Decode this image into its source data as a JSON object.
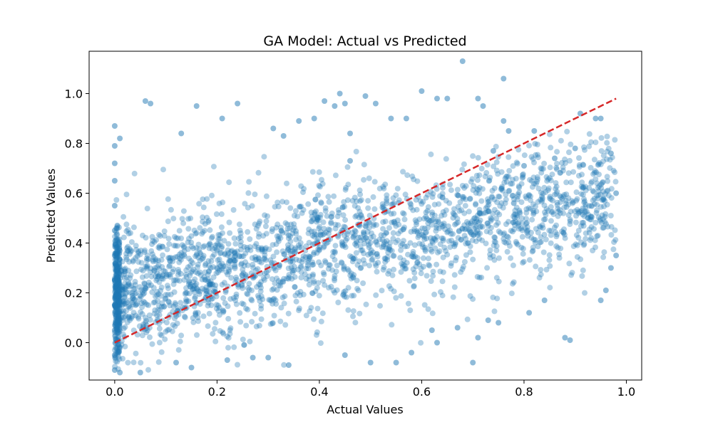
{
  "chart_data": {
    "type": "scatter",
    "title": "GA Model: Actual vs Predicted",
    "xlabel": "Actual Values",
    "ylabel": "Predicted Values",
    "xlim": [
      -0.05,
      1.03
    ],
    "ylim": [
      -0.15,
      1.17
    ],
    "xticks": [
      0.0,
      0.2,
      0.4,
      0.6,
      0.8,
      1.0
    ],
    "xtick_labels": [
      "0.0",
      "0.2",
      "0.4",
      "0.6",
      "0.8",
      "1.0"
    ],
    "yticks": [
      0.0,
      0.2,
      0.4,
      0.6,
      0.8,
      1.0
    ],
    "ytick_labels": [
      "0.0",
      "0.2",
      "0.4",
      "0.6",
      "0.8",
      "1.0"
    ],
    "grid": false,
    "marker_color": "#1f77b4",
    "marker_alpha": 0.5,
    "reference_line": {
      "x": [
        0.0,
        0.98
      ],
      "y": [
        0.0,
        0.98
      ],
      "color": "#d62728",
      "style": "dashed"
    },
    "series": [
      {
        "points": [
          [
            0.0,
            0.87
          ],
          [
            0.0,
            0.79
          ],
          [
            0.01,
            0.82
          ],
          [
            0.0,
            0.72
          ],
          [
            0.0,
            0.65
          ],
          [
            0.0,
            0.55
          ],
          [
            0.0,
            0.45
          ],
          [
            0.0,
            0.35
          ],
          [
            0.0,
            0.25
          ],
          [
            0.0,
            0.15
          ],
          [
            0.0,
            0.05
          ],
          [
            0.0,
            -0.05
          ],
          [
            0.0,
            -0.11
          ],
          [
            0.01,
            -0.12
          ],
          [
            0.06,
            0.97
          ],
          [
            0.07,
            0.96
          ],
          [
            0.16,
            0.95
          ],
          [
            0.24,
            0.96
          ],
          [
            0.21,
            0.9
          ],
          [
            0.13,
            0.84
          ],
          [
            0.05,
            -0.12
          ],
          [
            0.12,
            -0.08
          ],
          [
            0.15,
            -0.1
          ],
          [
            0.31,
            0.86
          ],
          [
            0.33,
            0.83
          ],
          [
            0.36,
            0.89
          ],
          [
            0.39,
            0.9
          ],
          [
            0.41,
            0.97
          ],
          [
            0.43,
            0.95
          ],
          [
            0.44,
            1.0
          ],
          [
            0.45,
            0.96
          ],
          [
            0.46,
            0.84
          ],
          [
            0.49,
            0.99
          ],
          [
            0.51,
            0.96
          ],
          [
            0.46,
            0.73
          ],
          [
            0.54,
            0.9
          ],
          [
            0.57,
            0.9
          ],
          [
            0.6,
            1.01
          ],
          [
            0.63,
            0.98
          ],
          [
            0.65,
            0.98
          ],
          [
            0.68,
            1.13
          ],
          [
            0.71,
            0.98
          ],
          [
            0.72,
            0.95
          ],
          [
            0.76,
            1.06
          ],
          [
            0.76,
            0.89
          ],
          [
            0.77,
            0.85
          ],
          [
            0.82,
            0.85
          ],
          [
            0.91,
            0.92
          ],
          [
            0.94,
            0.9
          ],
          [
            0.62,
            0.05
          ],
          [
            0.63,
            0.0
          ],
          [
            0.67,
            0.06
          ],
          [
            0.7,
            -0.08
          ],
          [
            0.71,
            0.02
          ],
          [
            0.73,
            0.09
          ],
          [
            0.75,
            0.08
          ],
          [
            0.81,
            0.12
          ],
          [
            0.84,
            0.17
          ],
          [
            0.88,
            0.02
          ],
          [
            0.89,
            0.01
          ],
          [
            0.95,
            0.17
          ],
          [
            0.96,
            0.21
          ],
          [
            0.97,
            0.3
          ],
          [
            0.5,
            -0.08
          ],
          [
            0.55,
            -0.08
          ],
          [
            0.58,
            -0.04
          ],
          [
            0.45,
            -0.05
          ],
          [
            0.34,
            -0.09
          ],
          [
            0.27,
            -0.06
          ],
          [
            0.22,
            -0.07
          ],
          [
            0.3,
            -0.06
          ],
          [
            0.98,
            0.6
          ],
          [
            0.97,
            0.76
          ],
          [
            0.98,
            0.35
          ],
          [
            0.95,
            0.9
          ],
          [
            0.9,
            0.78
          ],
          [
            0.86,
            0.74
          ],
          [
            0.8,
            0.71
          ],
          [
            0.74,
            0.77
          ],
          [
            0.78,
            0.56
          ]
        ]
      }
    ]
  }
}
